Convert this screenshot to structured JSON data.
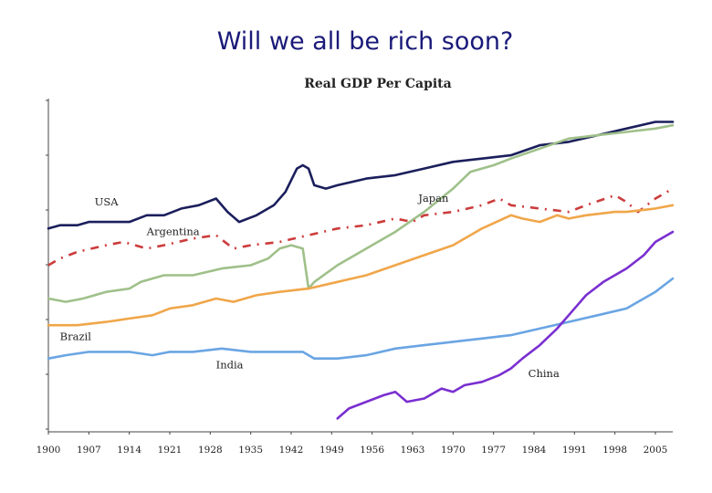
{
  "slide": {
    "title": "Will we all be rich soon?"
  },
  "chart_data": {
    "type": "line",
    "title": "Real GDP Per Capita",
    "xlabel": "",
    "ylabel": "",
    "x_ticks": [
      "1900",
      "1907",
      "1914",
      "1921",
      "1928",
      "1935",
      "1942",
      "1949",
      "1956",
      "1963",
      "1970",
      "1977",
      "1984",
      "1991",
      "1998",
      "2005"
    ],
    "xlim": [
      1900,
      2008
    ],
    "ylim": [
      0,
      100
    ],
    "y_axis_labels": false,
    "grid": false,
    "legend": "inline",
    "series": [
      {
        "name": "USA",
        "color": "#1b1f5c",
        "style": "solid",
        "points": [
          [
            1900,
            61
          ],
          [
            1902,
            62
          ],
          [
            1905,
            62
          ],
          [
            1907,
            63
          ],
          [
            1910,
            63
          ],
          [
            1914,
            63
          ],
          [
            1917,
            65
          ],
          [
            1920,
            65
          ],
          [
            1923,
            67
          ],
          [
            1926,
            68
          ],
          [
            1929,
            70
          ],
          [
            1931,
            66
          ],
          [
            1933,
            63
          ],
          [
            1936,
            65
          ],
          [
            1939,
            68
          ],
          [
            1941,
            72
          ],
          [
            1943,
            79
          ],
          [
            1944,
            80
          ],
          [
            1945,
            79
          ],
          [
            1946,
            74
          ],
          [
            1948,
            73
          ],
          [
            1950,
            74
          ],
          [
            1955,
            76
          ],
          [
            1960,
            77
          ],
          [
            1965,
            79
          ],
          [
            1970,
            81
          ],
          [
            1975,
            82
          ],
          [
            1980,
            83
          ],
          [
            1985,
            86
          ],
          [
            1990,
            87
          ],
          [
            1995,
            89
          ],
          [
            2000,
            91
          ],
          [
            2005,
            93
          ],
          [
            2008,
            93
          ]
        ]
      },
      {
        "name": "Japan",
        "color": "#9fc08a",
        "style": "solid",
        "points": [
          [
            1900,
            40
          ],
          [
            1903,
            39
          ],
          [
            1906,
            40
          ],
          [
            1910,
            42
          ],
          [
            1914,
            43
          ],
          [
            1916,
            45
          ],
          [
            1920,
            47
          ],
          [
            1925,
            47
          ],
          [
            1930,
            49
          ],
          [
            1935,
            50
          ],
          [
            1938,
            52
          ],
          [
            1940,
            55
          ],
          [
            1942,
            56
          ],
          [
            1944,
            55
          ],
          [
            1945,
            43
          ],
          [
            1946,
            45
          ],
          [
            1950,
            50
          ],
          [
            1955,
            55
          ],
          [
            1960,
            60
          ],
          [
            1965,
            66
          ],
          [
            1970,
            73
          ],
          [
            1973,
            78
          ],
          [
            1977,
            80
          ],
          [
            1980,
            82
          ],
          [
            1985,
            85
          ],
          [
            1990,
            88
          ],
          [
            1995,
            89
          ],
          [
            2000,
            90
          ],
          [
            2005,
            91
          ],
          [
            2008,
            92
          ]
        ]
      },
      {
        "name": "Argentina",
        "color": "#cc3c3c",
        "style": "dashdot",
        "points": [
          [
            1900,
            50
          ],
          [
            1902,
            52
          ],
          [
            1905,
            54
          ],
          [
            1910,
            56
          ],
          [
            1913,
            57
          ],
          [
            1917,
            55
          ],
          [
            1920,
            56
          ],
          [
            1925,
            58
          ],
          [
            1929,
            59
          ],
          [
            1932,
            55
          ],
          [
            1935,
            56
          ],
          [
            1940,
            57
          ],
          [
            1945,
            59
          ],
          [
            1950,
            61
          ],
          [
            1955,
            62
          ],
          [
            1960,
            64
          ],
          [
            1963,
            63
          ],
          [
            1965,
            65
          ],
          [
            1970,
            66
          ],
          [
            1975,
            68
          ],
          [
            1978,
            70
          ],
          [
            1980,
            68
          ],
          [
            1985,
            67
          ],
          [
            1990,
            66
          ],
          [
            1993,
            68
          ],
          [
            1998,
            71
          ],
          [
            2000,
            69
          ],
          [
            2002,
            66
          ],
          [
            2005,
            70
          ],
          [
            2008,
            73
          ]
        ]
      },
      {
        "name": "Brazil",
        "color": "#f0a64a",
        "style": "solid",
        "points": [
          [
            1900,
            32
          ],
          [
            1905,
            32
          ],
          [
            1910,
            33
          ],
          [
            1914,
            34
          ],
          [
            1918,
            35
          ],
          [
            1921,
            37
          ],
          [
            1925,
            38
          ],
          [
            1929,
            40
          ],
          [
            1932,
            39
          ],
          [
            1936,
            41
          ],
          [
            1940,
            42
          ],
          [
            1945,
            43
          ],
          [
            1950,
            45
          ],
          [
            1955,
            47
          ],
          [
            1960,
            50
          ],
          [
            1965,
            53
          ],
          [
            1970,
            56
          ],
          [
            1975,
            61
          ],
          [
            1980,
            65
          ],
          [
            1982,
            64
          ],
          [
            1985,
            63
          ],
          [
            1988,
            65
          ],
          [
            1990,
            64
          ],
          [
            1993,
            65
          ],
          [
            1998,
            66
          ],
          [
            2000,
            66
          ],
          [
            2005,
            67
          ],
          [
            2008,
            68
          ]
        ]
      },
      {
        "name": "India",
        "color": "#6aa5e3",
        "style": "solid",
        "points": [
          [
            1900,
            22
          ],
          [
            1903,
            23
          ],
          [
            1907,
            24
          ],
          [
            1910,
            24
          ],
          [
            1914,
            24
          ],
          [
            1918,
            23
          ],
          [
            1921,
            24
          ],
          [
            1925,
            24
          ],
          [
            1930,
            25
          ],
          [
            1935,
            24
          ],
          [
            1940,
            24
          ],
          [
            1944,
            24
          ],
          [
            1946,
            22
          ],
          [
            1950,
            22
          ],
          [
            1955,
            23
          ],
          [
            1960,
            25
          ],
          [
            1965,
            26
          ],
          [
            1970,
            27
          ],
          [
            1975,
            28
          ],
          [
            1980,
            29
          ],
          [
            1985,
            31
          ],
          [
            1990,
            33
          ],
          [
            1995,
            35
          ],
          [
            2000,
            37
          ],
          [
            2005,
            42
          ],
          [
            2008,
            46
          ]
        ]
      },
      {
        "name": "China",
        "color": "#7a2fd0",
        "style": "solid",
        "points": [
          [
            1950,
            4
          ],
          [
            1952,
            7
          ],
          [
            1955,
            9
          ],
          [
            1958,
            11
          ],
          [
            1960,
            12
          ],
          [
            1962,
            9
          ],
          [
            1965,
            10
          ],
          [
            1968,
            13
          ],
          [
            1970,
            12
          ],
          [
            1972,
            14
          ],
          [
            1975,
            15
          ],
          [
            1978,
            17
          ],
          [
            1980,
            19
          ],
          [
            1982,
            22
          ],
          [
            1985,
            26
          ],
          [
            1988,
            31
          ],
          [
            1990,
            35
          ],
          [
            1993,
            41
          ],
          [
            1996,
            45
          ],
          [
            2000,
            49
          ],
          [
            2003,
            53
          ],
          [
            2005,
            57
          ],
          [
            2008,
            60
          ]
        ]
      }
    ],
    "annotations": [
      {
        "text": "USA",
        "x": 1908,
        "y": 68
      },
      {
        "text": "Japan",
        "x": 1964,
        "y": 69
      },
      {
        "text": "Argentina",
        "x": 1917,
        "y": 59
      },
      {
        "text": "Brazil",
        "x": 1902,
        "y": 27.5
      },
      {
        "text": "India",
        "x": 1929,
        "y": 19
      },
      {
        "text": "China",
        "x": 1983,
        "y": 16.5
      }
    ]
  }
}
